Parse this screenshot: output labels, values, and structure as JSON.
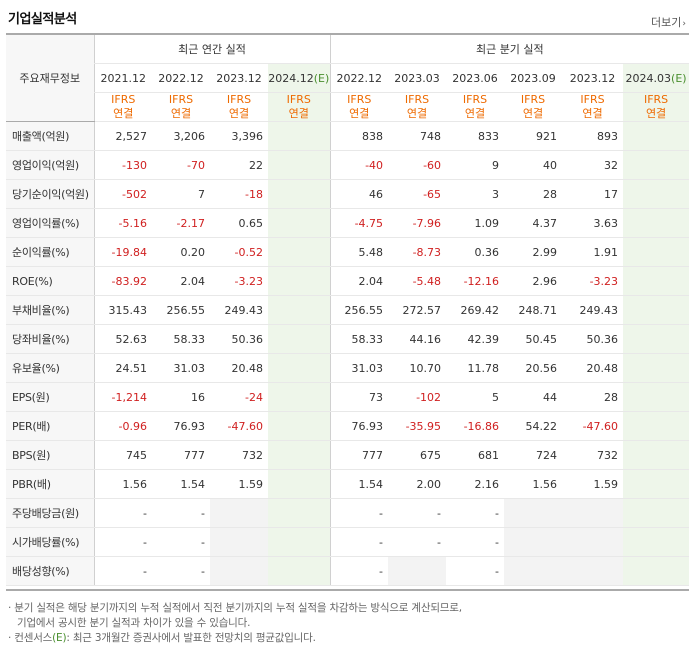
{
  "header": {
    "title": "기업실적분석",
    "more_label": "더보기"
  },
  "table": {
    "row_header_label": "주요재무정보",
    "group_annual": "최근 연간 실적",
    "group_quarter": "최근 분기 실적",
    "periods_annual": [
      "2021.12",
      "2022.12",
      "2023.12",
      "2024.12"
    ],
    "periods_quarter": [
      "2022.12",
      "2023.03",
      "2023.06",
      "2023.09",
      "2023.12",
      "2024.03"
    ],
    "estimate_mark": "(E)",
    "standard_top": "IFRS",
    "standard_bottom": "연결",
    "rows": [
      {
        "label": "매출액(억원)",
        "values": [
          "2,527",
          "3,206",
          "3,396",
          "",
          "838",
          "748",
          "833",
          "921",
          "893",
          ""
        ]
      },
      {
        "label": "영업이익(억원)",
        "values": [
          "-130",
          "-70",
          "22",
          "",
          "-40",
          "-60",
          "9",
          "40",
          "32",
          ""
        ]
      },
      {
        "label": "당기순이익(억원)",
        "values": [
          "-502",
          "7",
          "-18",
          "",
          "46",
          "-65",
          "3",
          "28",
          "17",
          ""
        ]
      },
      {
        "label": "영업이익률(%)",
        "values": [
          "-5.16",
          "-2.17",
          "0.65",
          "",
          "-4.75",
          "-7.96",
          "1.09",
          "4.37",
          "3.63",
          ""
        ]
      },
      {
        "label": "순이익률(%)",
        "values": [
          "-19.84",
          "0.20",
          "-0.52",
          "",
          "5.48",
          "-8.73",
          "0.36",
          "2.99",
          "1.91",
          ""
        ]
      },
      {
        "label": "ROE(%)",
        "values": [
          "-83.92",
          "2.04",
          "-3.23",
          "",
          "2.04",
          "-5.48",
          "-12.16",
          "2.96",
          "-3.23",
          ""
        ]
      },
      {
        "label": "부채비율(%)",
        "values": [
          "315.43",
          "256.55",
          "249.43",
          "",
          "256.55",
          "272.57",
          "269.42",
          "248.71",
          "249.43",
          ""
        ]
      },
      {
        "label": "당좌비율(%)",
        "values": [
          "52.63",
          "58.33",
          "50.36",
          "",
          "58.33",
          "44.16",
          "42.39",
          "50.45",
          "50.36",
          ""
        ]
      },
      {
        "label": "유보율(%)",
        "values": [
          "24.51",
          "31.03",
          "20.48",
          "",
          "31.03",
          "10.70",
          "11.78",
          "20.56",
          "20.48",
          ""
        ]
      },
      {
        "label": "EPS(원)",
        "values": [
          "-1,214",
          "16",
          "-24",
          "",
          "73",
          "-102",
          "5",
          "44",
          "28",
          ""
        ]
      },
      {
        "label": "PER(배)",
        "values": [
          "-0.96",
          "76.93",
          "-47.60",
          "",
          "76.93",
          "-35.95",
          "-16.86",
          "54.22",
          "-47.60",
          ""
        ]
      },
      {
        "label": "BPS(원)",
        "values": [
          "745",
          "777",
          "732",
          "",
          "777",
          "675",
          "681",
          "724",
          "732",
          ""
        ]
      },
      {
        "label": "PBR(배)",
        "values": [
          "1.56",
          "1.54",
          "1.59",
          "",
          "1.54",
          "2.00",
          "2.16",
          "1.56",
          "1.59",
          ""
        ]
      },
      {
        "label": "주당배당금(원)",
        "values": [
          "-",
          "-",
          "",
          "",
          "-",
          "-",
          "-",
          "",
          "",
          ""
        ]
      },
      {
        "label": "시가배당률(%)",
        "values": [
          "-",
          "-",
          "",
          "",
          "-",
          "-",
          "-",
          "",
          "",
          ""
        ]
      },
      {
        "label": "배당성향(%)",
        "values": [
          "-",
          "-",
          "",
          "",
          "-",
          "",
          "-",
          "",
          "",
          ""
        ]
      }
    ]
  },
  "notes": {
    "line1": "· 분기 실적은 해당 분기까지의 누적 실적에서 직전 분기까지의 누적 실적을 차감하는 방식으로 계산되므로,",
    "line2": "기업에서 공시한 분기 실적과 차이가 있을 수 있습니다.",
    "line3_prefix": "· 컨센서스",
    "line3_mark": "(E)",
    "line3_suffix": ": 최근 3개월간 증권사에서 발표한 전망치의 평균값입니다."
  }
}
